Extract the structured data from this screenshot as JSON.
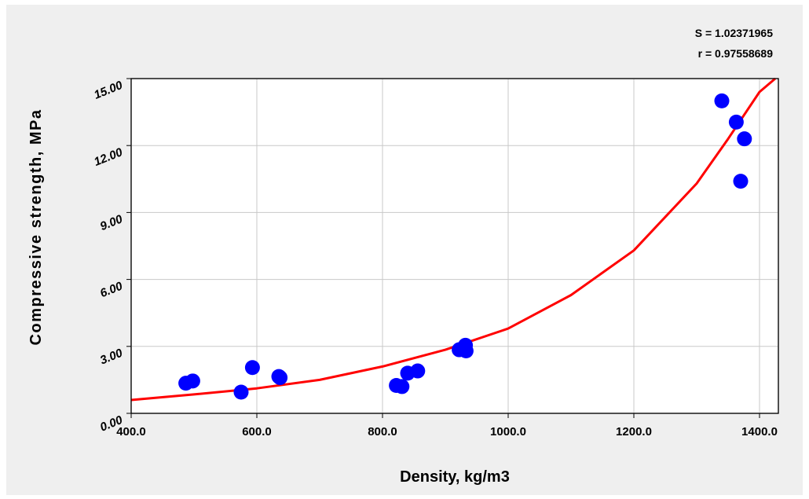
{
  "chart_data": {
    "type": "scatter",
    "xlabel": "Density, kg/m3",
    "ylabel": "Compressive strength, MPa",
    "xlim": [
      400,
      1430
    ],
    "ylim": [
      0,
      15
    ],
    "x_ticks": [
      400,
      600,
      800,
      1000,
      1200,
      1400
    ],
    "x_tick_labels": [
      "400.0",
      "600.0",
      "800.0",
      "1000.0",
      "1200.0",
      "1400.0"
    ],
    "y_ticks": [
      0,
      3,
      6,
      9,
      12,
      15
    ],
    "y_tick_labels": [
      "0.00",
      "3.00",
      "6.00",
      "9.00",
      "12.00",
      "15.00"
    ],
    "grid": true,
    "stats": {
      "s_label": "S = 1.02371965",
      "r_label": "r = 0.97558689"
    },
    "series": [
      {
        "type": "scatter",
        "color": "#0000ff",
        "points": [
          [
            487,
            1.35
          ],
          [
            498,
            1.45
          ],
          [
            575,
            0.95
          ],
          [
            593,
            2.05
          ],
          [
            635,
            1.65
          ],
          [
            637,
            1.6
          ],
          [
            822,
            1.25
          ],
          [
            831,
            1.2
          ],
          [
            840,
            1.8
          ],
          [
            856,
            1.9
          ],
          [
            922,
            2.85
          ],
          [
            932,
            3.05
          ],
          [
            933,
            2.8
          ],
          [
            1340,
            14.0
          ],
          [
            1363,
            13.05
          ],
          [
            1370,
            10.4
          ],
          [
            1376,
            12.3
          ]
        ]
      },
      {
        "type": "line",
        "color": "#ff0000",
        "curve": [
          [
            400,
            0.6
          ],
          [
            500,
            0.85
          ],
          [
            600,
            1.12
          ],
          [
            700,
            1.5
          ],
          [
            800,
            2.1
          ],
          [
            900,
            2.85
          ],
          [
            1000,
            3.8
          ],
          [
            1100,
            5.3
          ],
          [
            1200,
            7.3
          ],
          [
            1300,
            10.3
          ],
          [
            1350,
            12.3
          ],
          [
            1400,
            14.4
          ],
          [
            1425,
            15.0
          ]
        ]
      }
    ]
  }
}
